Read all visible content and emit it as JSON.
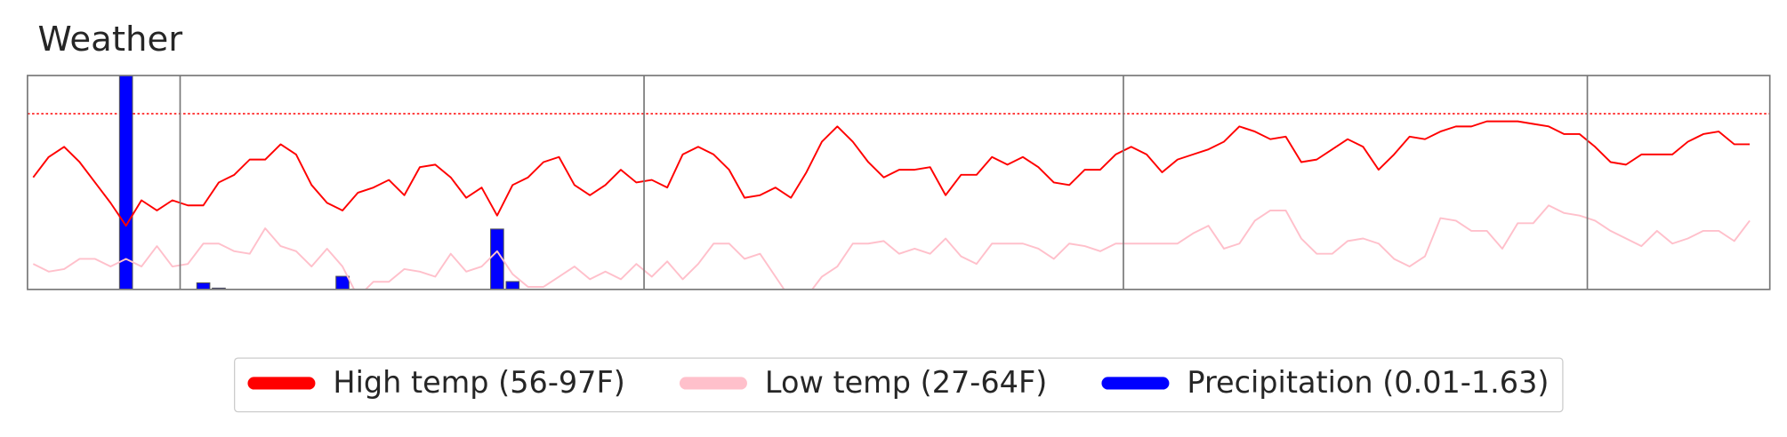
{
  "chart_data": {
    "type": "line",
    "title": "Weather",
    "xlim": [
      -0.37,
      112.3
    ],
    "ylim": [
      31,
      115
    ],
    "y2lim": [
      0,
      1.63
    ],
    "vlines": [
      9.5,
      39.5,
      70.5,
      100.5
    ],
    "hline": 100,
    "hline_color": "#ff0000",
    "legend": "lower center",
    "series": [
      {
        "name": "High temp (56-97F)",
        "color": "#ff0000",
        "type": "line",
        "values": [
          75,
          83,
          87,
          81,
          73,
          65,
          56,
          66,
          62,
          66,
          64,
          64,
          73,
          76,
          82,
          82,
          88,
          84,
          72,
          65,
          62,
          69,
          71,
          74,
          68,
          79,
          80,
          75,
          67,
          71,
          60,
          72,
          75,
          81,
          83,
          72,
          68,
          72,
          78,
          73,
          74,
          71,
          84,
          87,
          84,
          78,
          67,
          68,
          71,
          67,
          77,
          89,
          95,
          89,
          81,
          75,
          78,
          78,
          79,
          68,
          76,
          76,
          83,
          80,
          83,
          79,
          73,
          72,
          78,
          78,
          84,
          87,
          84,
          77,
          82,
          84,
          86,
          89,
          95,
          93,
          90,
          91,
          81,
          82,
          86,
          90,
          87,
          78,
          84,
          91,
          90,
          93,
          95,
          95,
          97,
          97,
          97,
          96,
          95,
          92,
          92,
          87,
          81,
          80,
          84,
          84,
          84,
          89,
          92,
          93,
          88,
          88
        ]
      },
      {
        "name": "Low temp (27-64F)",
        "color": "#ffc0cb",
        "type": "line",
        "values": [
          41,
          38,
          39,
          43,
          43,
          40,
          43,
          40,
          48,
          40,
          41,
          49,
          49,
          46,
          45,
          55,
          48,
          46,
          40,
          47,
          40,
          28,
          34,
          34,
          39,
          38,
          36,
          45,
          38,
          40,
          46,
          37,
          32,
          32,
          36,
          40,
          35,
          38,
          35,
          41,
          36,
          42,
          35,
          41,
          49,
          49,
          43,
          45,
          36,
          27,
          28,
          36,
          40,
          49,
          49,
          50,
          45,
          47,
          45,
          51,
          44,
          41,
          49,
          49,
          49,
          47,
          43,
          49,
          48,
          46,
          49,
          49,
          49,
          49,
          49,
          53,
          56,
          47,
          49,
          58,
          62,
          62,
          51,
          45,
          45,
          50,
          51,
          49,
          43,
          40,
          44,
          59,
          58,
          54,
          54,
          47,
          57,
          57,
          64,
          61,
          60,
          58,
          54,
          51,
          48,
          54,
          49,
          51,
          54,
          54,
          50,
          58
        ]
      },
      {
        "name": "Precipitation (0.01-1.63)",
        "color": "#0000ff",
        "type": "bar",
        "axis": "y2",
        "x": [
          6,
          11,
          12,
          20,
          30,
          31
        ],
        "values": [
          1.63,
          0.05,
          0.01,
          0.1,
          0.46,
          0.06
        ]
      }
    ]
  }
}
